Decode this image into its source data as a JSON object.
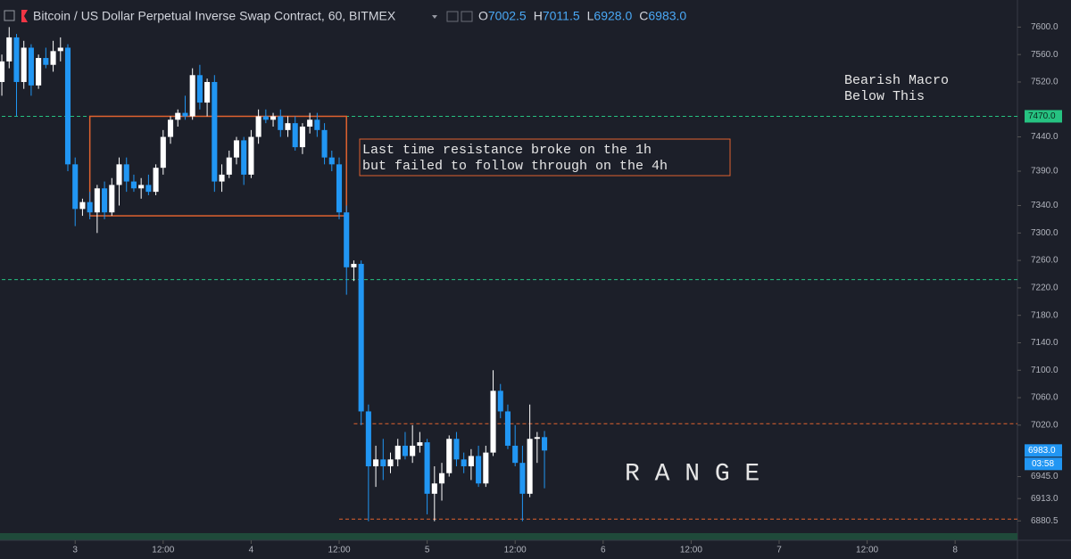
{
  "header": {
    "title": "Bitcoin / US Dollar Perpetual Inverse Swap Contract, 60, BITMEX",
    "ohlc": [
      {
        "key": "O",
        "text": "7002.5"
      },
      {
        "key": "H",
        "text": "7011.5"
      },
      {
        "key": "L",
        "text": "6928.0"
      },
      {
        "key": "C",
        "text": "6983.0"
      }
    ]
  },
  "chart_data": {
    "type": "candlestick",
    "up_color": "#ffffff",
    "down_color": "#2196f3",
    "open": [
      7520,
      7550,
      7585,
      7520,
      7570,
      7515,
      7555,
      7545,
      7565,
      7570,
      7400,
      7335,
      7345,
      7330,
      7365,
      7330,
      7370,
      7400,
      7375,
      7365,
      7370,
      7360,
      7395,
      7440,
      7465,
      7475,
      7470,
      7530,
      7490,
      7520,
      7375,
      7385,
      7410,
      7435,
      7385,
      7440,
      7470,
      7465,
      7470,
      7450,
      7460,
      7425,
      7455,
      7465,
      7450,
      7410,
      7400,
      7330,
      7250,
      7255,
      7040,
      6960,
      6970,
      6960,
      6970,
      6990,
      6975,
      6990,
      6995,
      6920,
      6935,
      6950,
      7000,
      6970,
      6960,
      6975,
      6935,
      6980,
      7070,
      7040,
      6990,
      6965,
      6920,
      7000,
      7002.5
    ],
    "high": [
      7560,
      7600,
      7590,
      7580,
      7575,
      7560,
      7570,
      7580,
      7585,
      7575,
      7410,
      7350,
      7360,
      7370,
      7375,
      7380,
      7410,
      7410,
      7385,
      7380,
      7385,
      7400,
      7450,
      7470,
      7480,
      7500,
      7540,
      7545,
      7525,
      7530,
      7400,
      7420,
      7440,
      7440,
      7450,
      7480,
      7480,
      7475,
      7480,
      7470,
      7470,
      7460,
      7475,
      7475,
      7460,
      7420,
      7410,
      7340,
      7260,
      7260,
      7050,
      6990,
      7000,
      6980,
      7000,
      7010,
      7020,
      7010,
      7000,
      6960,
      6965,
      7005,
      7010,
      6980,
      6985,
      6990,
      6990,
      7100,
      7080,
      7050,
      7020,
      6990,
      7050,
      7010,
      7011.5
    ],
    "low": [
      7500,
      7540,
      7470,
      7510,
      7500,
      7510,
      7540,
      7535,
      7550,
      7390,
      7310,
      7325,
      7320,
      7300,
      7320,
      7325,
      7340,
      7360,
      7360,
      7350,
      7355,
      7355,
      7385,
      7430,
      7455,
      7465,
      7465,
      7480,
      7470,
      7360,
      7360,
      7380,
      7400,
      7370,
      7380,
      7430,
      7460,
      7455,
      7440,
      7440,
      7420,
      7415,
      7445,
      7440,
      7400,
      7390,
      7320,
      7210,
      7230,
      7020,
      6880,
      6930,
      6940,
      6950,
      6960,
      6970,
      6965,
      6980,
      6890,
      6880,
      6910,
      6945,
      6960,
      6950,
      6940,
      6930,
      6930,
      6975,
      7030,
      6985,
      6960,
      6880,
      6915,
      6965,
      6928
    ],
    "close": [
      7550,
      7585,
      7520,
      7570,
      7515,
      7555,
      7545,
      7565,
      7570,
      7400,
      7335,
      7345,
      7330,
      7365,
      7330,
      7370,
      7400,
      7375,
      7365,
      7370,
      7360,
      7395,
      7440,
      7465,
      7475,
      7470,
      7530,
      7490,
      7520,
      7375,
      7385,
      7410,
      7435,
      7385,
      7440,
      7470,
      7465,
      7470,
      7450,
      7460,
      7425,
      7455,
      7465,
      7450,
      7410,
      7400,
      7330,
      7250,
      7255,
      7040,
      6960,
      6970,
      6960,
      6970,
      6990,
      6975,
      6990,
      6995,
      6920,
      6935,
      6950,
      7000,
      6970,
      6960,
      6975,
      6935,
      6980,
      7070,
      7040,
      6990,
      6965,
      6920,
      7000,
      7002.5,
      6983
    ],
    "xlim": [
      -0.25,
      138.5
    ],
    "xticks": [
      {
        "value": 10,
        "label": "3"
      },
      {
        "value": 22,
        "label": "12:00"
      },
      {
        "value": 34,
        "label": "4"
      },
      {
        "value": 46,
        "label": "12:00"
      },
      {
        "value": 58,
        "label": "5"
      },
      {
        "value": 70,
        "label": "12:00"
      },
      {
        "value": 82,
        "label": "6"
      },
      {
        "value": 94,
        "label": "12:00"
      },
      {
        "value": 106,
        "label": "7"
      },
      {
        "value": 118,
        "label": "12:00"
      },
      {
        "value": 130,
        "label": "8"
      }
    ],
    "ylim": [
      6860,
      7620
    ],
    "yticks": [
      {
        "value": 7600,
        "label": "7600.0"
      },
      {
        "value": 7560,
        "label": "7560.0"
      },
      {
        "value": 7520,
        "label": "7520.0"
      },
      {
        "value": 7440,
        "label": "7440.0"
      },
      {
        "value": 7390,
        "label": "7390.0"
      },
      {
        "value": 7340,
        "label": "7340.0"
      },
      {
        "value": 7300,
        "label": "7300.0"
      },
      {
        "value": 7260,
        "label": "7260.0"
      },
      {
        "value": 7220,
        "label": "7220.0"
      },
      {
        "value": 7180,
        "label": "7180.0"
      },
      {
        "value": 7140,
        "label": "7140.0"
      },
      {
        "value": 7100,
        "label": "7100.0"
      },
      {
        "value": 7060,
        "label": "7060.0"
      },
      {
        "value": 7020,
        "label": "7020.0"
      },
      {
        "value": 6945,
        "label": "6945.0"
      },
      {
        "value": 6913,
        "label": "6913.0"
      },
      {
        "value": 6880.5,
        "label": "6880.5"
      }
    ],
    "price_labels": [
      {
        "value": 7470,
        "label": "7470.0",
        "color": "#26c281"
      },
      {
        "value": 6983,
        "label": "6983.0",
        "color": "#2196f3"
      }
    ],
    "countdown": "03:58",
    "hlines": [
      {
        "value": 7470,
        "start": 0,
        "color": "#26c281"
      },
      {
        "value": 7232,
        "start": 0,
        "color": "#26c281"
      },
      {
        "value": 7022,
        "start": 48,
        "color": "#e0622f"
      },
      {
        "value": 6883,
        "start": 46,
        "color": "#e0622f"
      }
    ],
    "box": {
      "x": [
        12,
        47
      ],
      "y": [
        7325,
        7470
      ],
      "color": "#e0622f"
    },
    "annotations": {
      "note": [
        "Last time resistance broke on the 1h",
        "but failed to follow through on the 4h"
      ],
      "macro": [
        "Bearish Macro",
        "Below This"
      ],
      "range": "R A N G E"
    }
  }
}
